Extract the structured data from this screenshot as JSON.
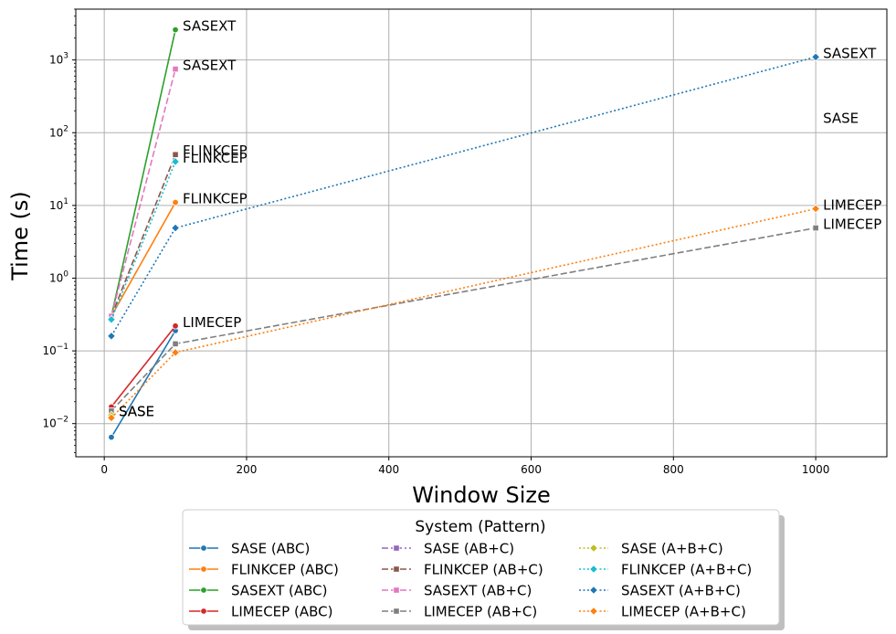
{
  "chart_data": {
    "type": "line",
    "xlabel": "Window Size",
    "ylabel": "Time (s)",
    "xlim": [
      -40,
      1100
    ],
    "ylim": [
      0.0035,
      5000
    ],
    "yscale": "log",
    "grid": true,
    "x_ticks": [
      0,
      200,
      400,
      600,
      800,
      1000
    ],
    "x_tick_labels": [
      "0",
      "200",
      "400",
      "600",
      "800",
      "1000"
    ],
    "y_ticks": [
      0.01,
      0.1,
      1,
      10,
      100,
      1000
    ],
    "y_tick_labels": [
      {
        "base": "10",
        "exp": "−2"
      },
      {
        "base": "10",
        "exp": "−1"
      },
      {
        "base": "10",
        "exp": "0"
      },
      {
        "base": "10",
        "exp": "1"
      },
      {
        "base": "10",
        "exp": "2"
      },
      {
        "base": "10",
        "exp": "3"
      }
    ],
    "legend": {
      "title": "System (Pattern)",
      "placement": "bottom-center",
      "columns": 3
    },
    "series": [
      {
        "name": "SASE (ABC)",
        "color": "#1f77b4",
        "dash": "solid",
        "marker": "circle",
        "x": [
          10,
          100
        ],
        "y": [
          0.0065,
          0.19
        ]
      },
      {
        "name": "FLINKCEP (ABC)",
        "color": "#ff7f0e",
        "dash": "solid",
        "marker": "circle",
        "x": [
          10,
          100
        ],
        "y": [
          0.3,
          11
        ]
      },
      {
        "name": "SASEXT (ABC)",
        "color": "#2ca02c",
        "dash": "solid",
        "marker": "circle",
        "x": [
          10,
          100
        ],
        "y": [
          0.3,
          2600
        ]
      },
      {
        "name": "LIMECEP (ABC)",
        "color": "#d62728",
        "dash": "solid",
        "marker": "circle",
        "x": [
          10,
          100
        ],
        "y": [
          0.017,
          0.22
        ]
      },
      {
        "name": "SASE (AB+C)",
        "color": "#9467bd",
        "dash": "dashdot",
        "marker": "square",
        "x": [
          10
        ],
        "y": [
          0.013
        ]
      },
      {
        "name": "FLINKCEP (AB+C)",
        "color": "#8c564b",
        "dash": "dashed",
        "marker": "square",
        "x": [
          10,
          100
        ],
        "y": [
          0.3,
          50
        ]
      },
      {
        "name": "SASEXT (AB+C)",
        "color": "#e377c2",
        "dash": "dashed",
        "marker": "square",
        "x": [
          10,
          100
        ],
        "y": [
          0.3,
          750
        ]
      },
      {
        "name": "LIMECEP (AB+C)",
        "color": "#7f7f7f",
        "dash": "dashed",
        "marker": "square",
        "x": [
          10,
          100,
          1000
        ],
        "y": [
          0.015,
          0.125,
          4.9
        ]
      },
      {
        "name": "SASE (A+B+C)",
        "color": "#bcbd22",
        "dash": "dotted",
        "marker": "diamond",
        "x": [
          10
        ],
        "y": [
          0.013
        ]
      },
      {
        "name": "FLINKCEP (A+B+C)",
        "color": "#17becf",
        "dash": "dotted",
        "marker": "diamond",
        "x": [
          10,
          100
        ],
        "y": [
          0.27,
          40
        ]
      },
      {
        "name": "SASEXT (A+B+C)",
        "color": "#1f77b4",
        "dash": "dotted",
        "marker": "diamond",
        "x": [
          10,
          100,
          1000
        ],
        "y": [
          0.16,
          4.9,
          1100
        ]
      },
      {
        "name": "LIMECEP (A+B+C)",
        "color": "#ff7f0e",
        "dash": "dotted",
        "marker": "diamond",
        "x": [
          10,
          100,
          1000
        ],
        "y": [
          0.012,
          0.095,
          9
        ]
      }
    ],
    "annotations": [
      {
        "text": "SASEXT",
        "x": 100,
        "y": 2600
      },
      {
        "text": "SASEXT",
        "x": 100,
        "y": 750
      },
      {
        "text": "FLINKCEP",
        "x": 100,
        "y": 50
      },
      {
        "text": "FLINKCEP",
        "x": 100,
        "y": 40
      },
      {
        "text": "FLINKCEP",
        "x": 100,
        "y": 11
      },
      {
        "text": "LIMECEP",
        "x": 100,
        "y": 0.22
      },
      {
        "text": "SASE",
        "x": 10,
        "y": 0.013
      },
      {
        "text": "SASE",
        "x": 10,
        "y": 0.013
      },
      {
        "text": "SASEXT",
        "x": 1000,
        "y": 1100
      },
      {
        "text": "SASE",
        "x": 1000,
        "y": 140
      },
      {
        "text": "LIMECEP",
        "x": 1000,
        "y": 9
      },
      {
        "text": "LIMECEP",
        "x": 1000,
        "y": 4.9
      }
    ]
  }
}
